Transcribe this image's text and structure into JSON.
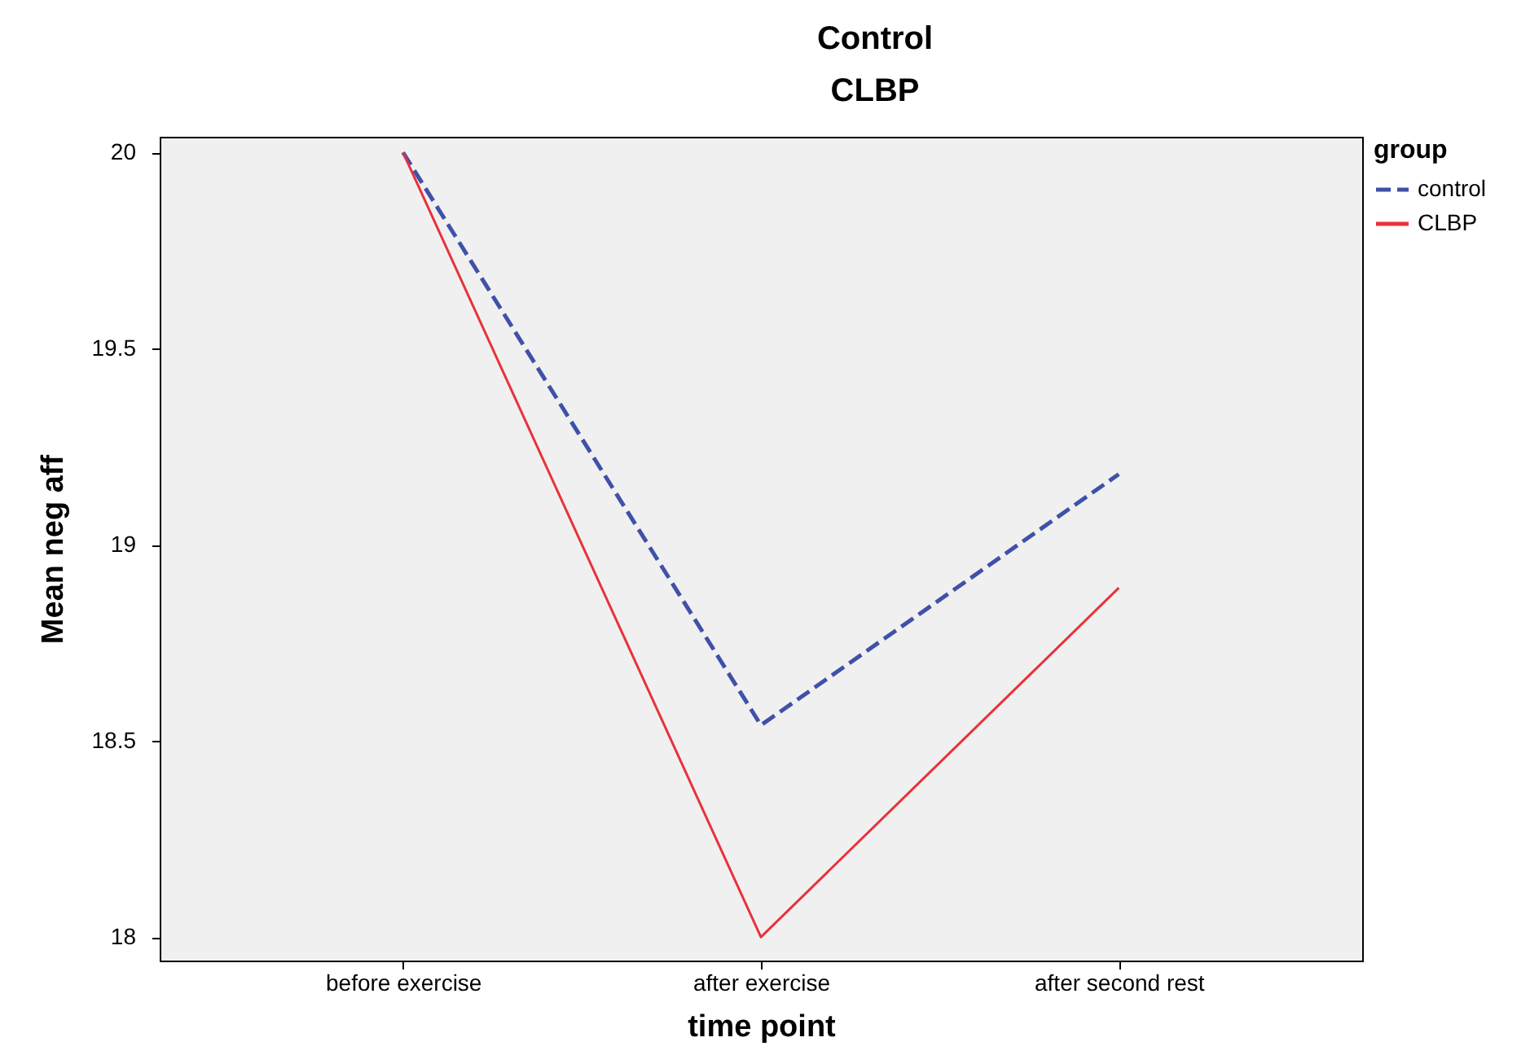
{
  "chart_data": {
    "type": "line",
    "title": "Control",
    "subtitle": "CLBP",
    "xlabel": "time point",
    "ylabel": "Mean neg aff",
    "legend_title": "group",
    "legend": "top right",
    "grid": false,
    "marker": "none",
    "categories": [
      "before exercise",
      "after exercise",
      "after second rest"
    ],
    "ylim": [
      17.94,
      20.04
    ],
    "yticks": [
      18,
      18.5,
      19,
      19.5,
      20
    ],
    "series": [
      {
        "name": "control",
        "color": "#3f51a8",
        "line_style": "dashed",
        "values": [
          20,
          18.54,
          19.18
        ]
      },
      {
        "name": "CLBP",
        "color": "#e8323a",
        "line_style": "solid",
        "values": [
          20,
          18,
          18.89
        ]
      }
    ]
  }
}
